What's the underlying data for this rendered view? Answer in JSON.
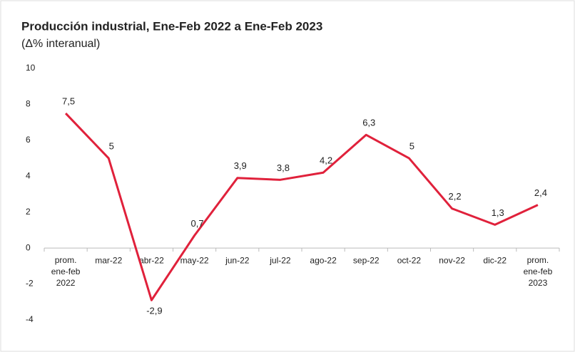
{
  "chart_data": {
    "type": "line",
    "title": "Producción industrial, Ene-Feb 2022 a Ene-Feb 2023",
    "subtitle": "(Δ% interanual)",
    "categories": [
      "prom. ene-feb 2022",
      "mar-22",
      "abr-22",
      "may-22",
      "jun-22",
      "jul-22",
      "ago-22",
      "sep-22",
      "oct-22",
      "nov-22",
      "dic-22",
      "prom. ene-feb 2023"
    ],
    "series": [
      {
        "name": "Producción industrial",
        "color": "#e0213b",
        "values": [
          7.5,
          5,
          -2.9,
          0.7,
          3.9,
          3.8,
          4.2,
          6.3,
          5,
          2.2,
          1.3,
          2.4
        ],
        "value_labels": [
          "7,5",
          "5",
          "-2,9",
          "0,7",
          "3,9",
          "3,8",
          "4,2",
          "6,3",
          "5",
          "2,2",
          "1,3",
          "2,4"
        ]
      }
    ],
    "ylim": [
      -4,
      10
    ],
    "yticks": [
      -4,
      -2,
      0,
      2,
      4,
      6,
      8,
      10
    ],
    "grid": false
  }
}
